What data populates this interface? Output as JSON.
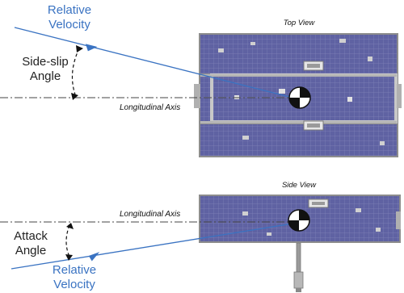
{
  "top": {
    "title": "Top View",
    "relative_velocity": [
      "Relative",
      "Velocity"
    ],
    "angle_label": [
      "Side-slip",
      "Angle"
    ],
    "axis_label": "Longitudinal Axis"
  },
  "side": {
    "title": "Side View",
    "relative_velocity": [
      "Relative",
      "Velocity"
    ],
    "angle_label": [
      "Attack",
      "Angle"
    ],
    "axis_label": "Longitudinal Axis"
  },
  "colors": {
    "velocity": "#3a73c2",
    "panel": "#5a5d9c",
    "frame": "#9a9a9a",
    "text": "#222222"
  }
}
